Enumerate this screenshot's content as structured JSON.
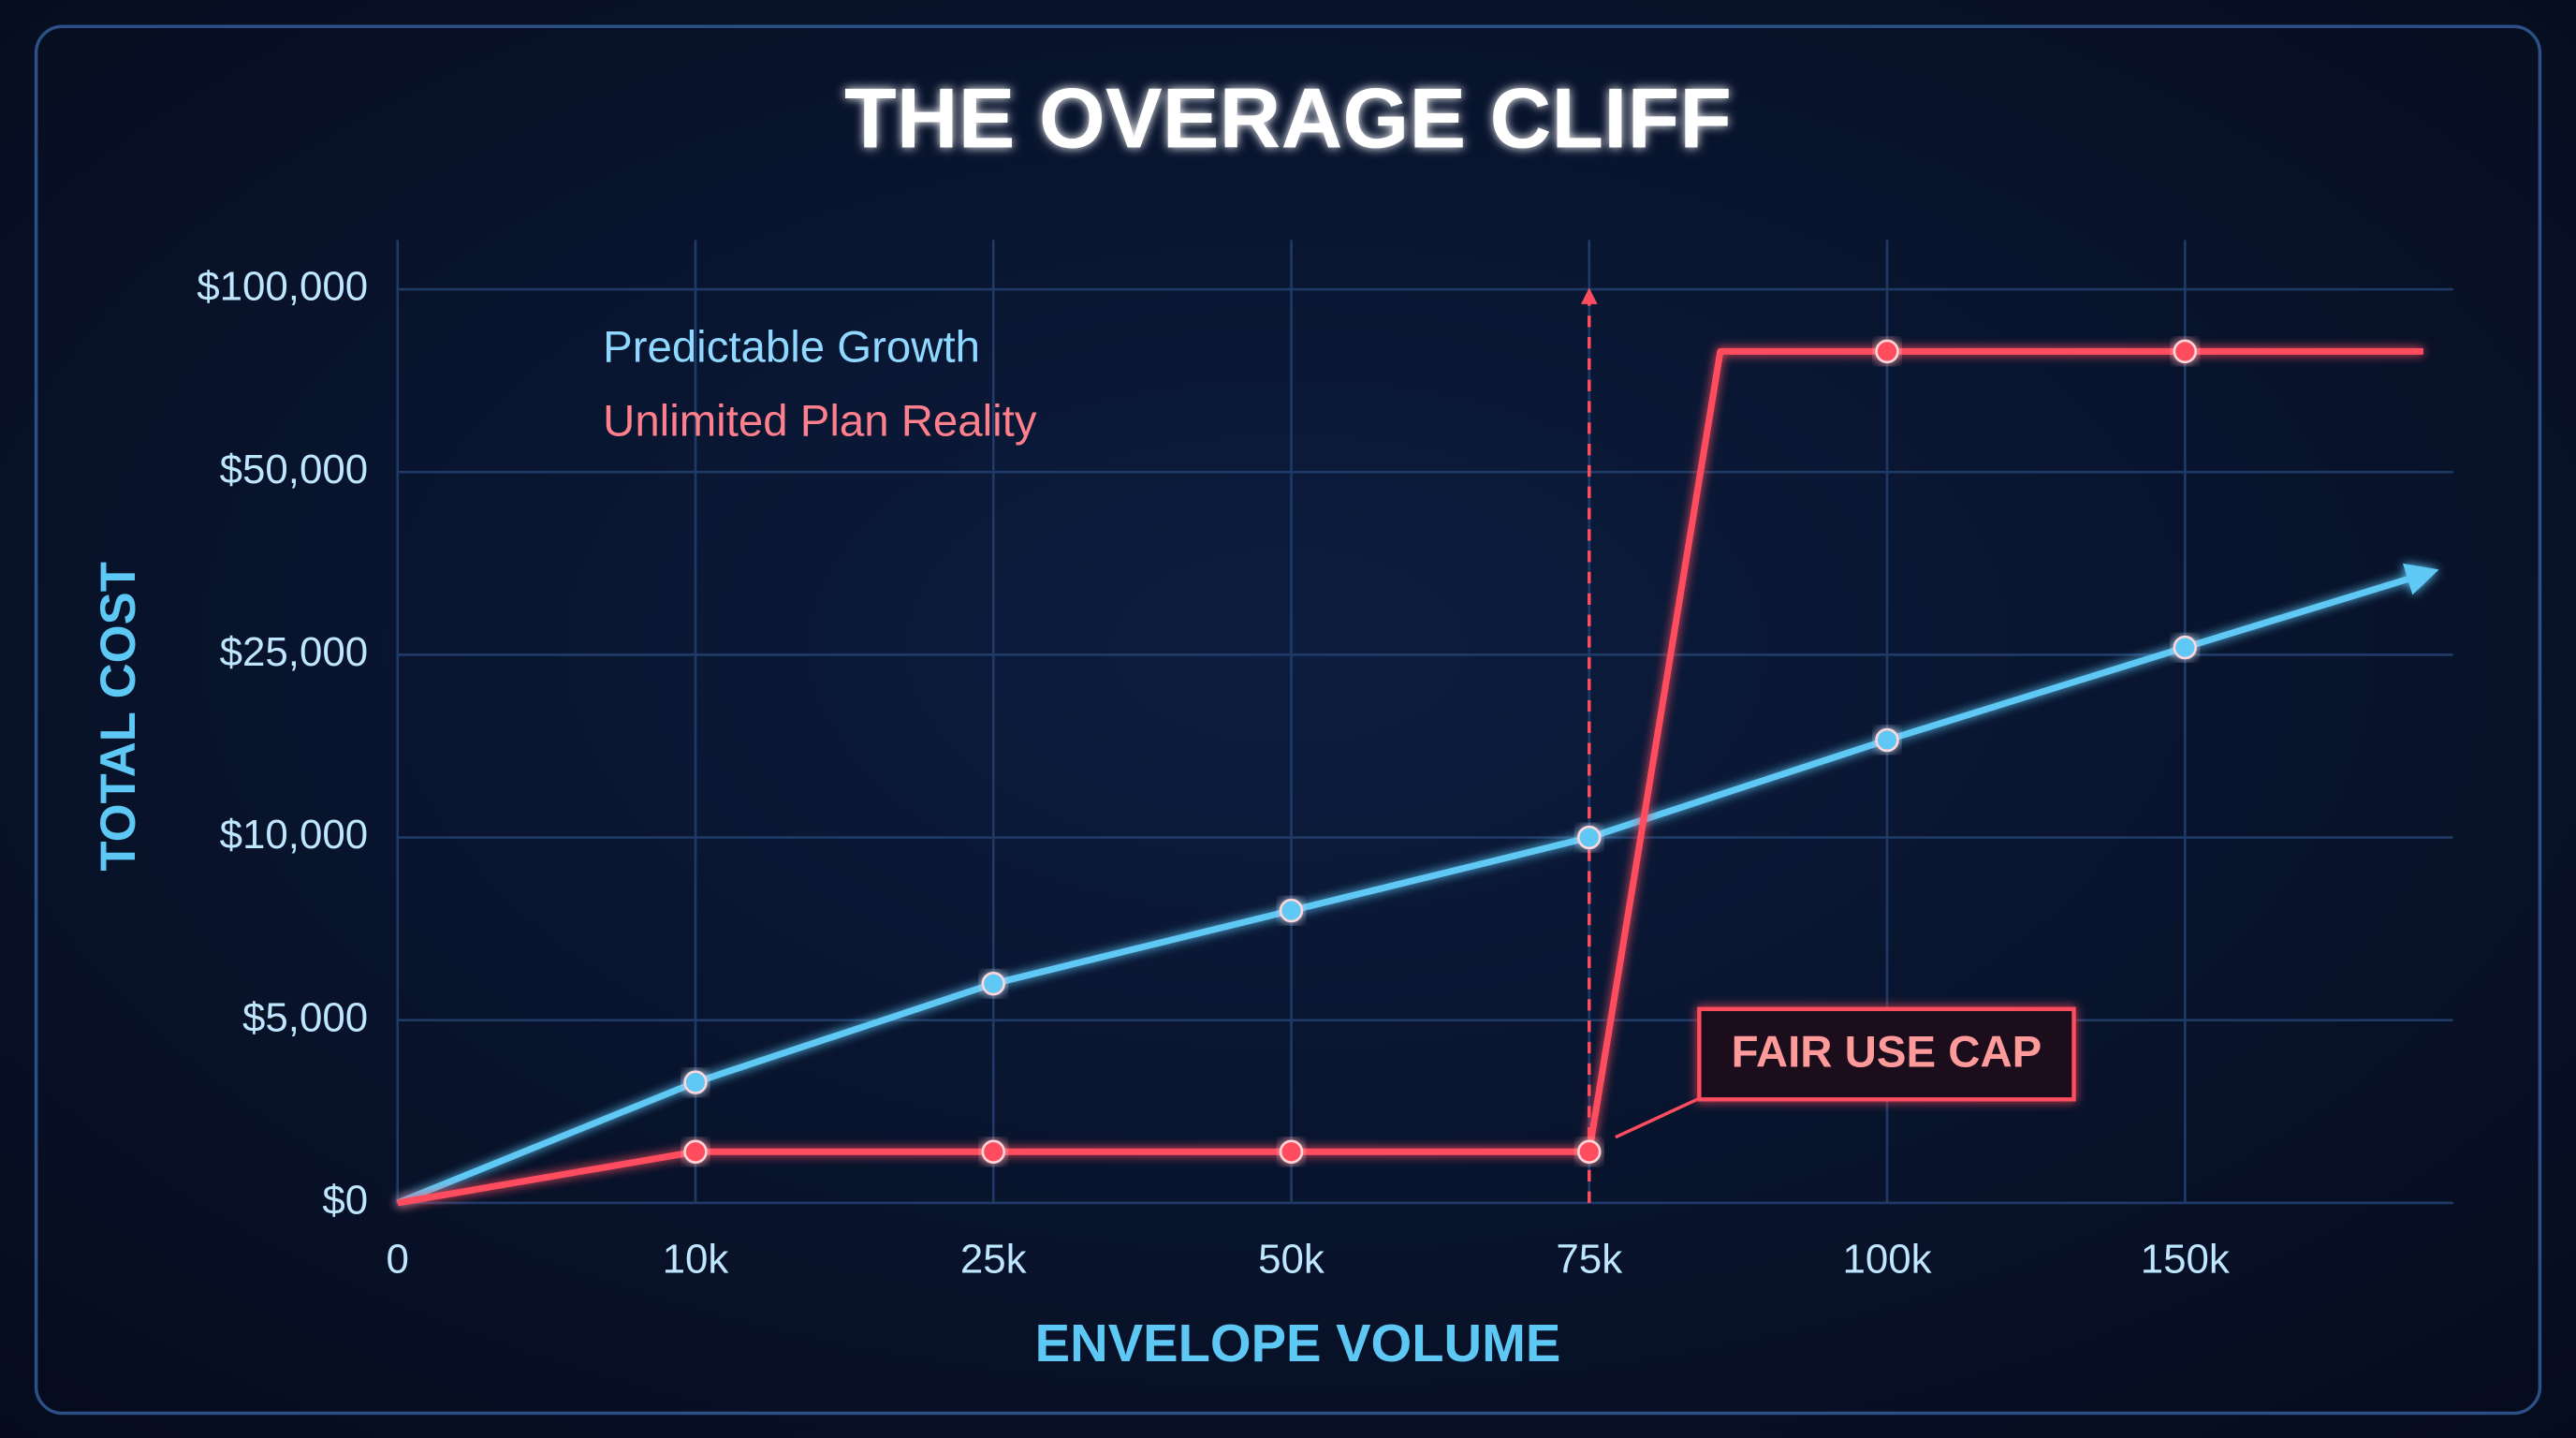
{
  "chart_data": {
    "type": "line",
    "title": "THE OVERAGE CLIFF",
    "x_label": "ENVELOPE VOLUME",
    "y_label": "TOTAL COST",
    "xlim": [
      0,
      195000
    ],
    "ylim": [
      0,
      100000
    ],
    "xticks": [
      0,
      {
        "value": 10000,
        "label": "10k"
      },
      {
        "value": 25000,
        "label": "25k"
      },
      {
        "value": 50000,
        "label": "50k"
      },
      {
        "value": 75000,
        "label": "75k"
      },
      {
        "value": 100000,
        "label": "100k"
      },
      {
        "value": 150000,
        "label": "150k"
      }
    ],
    "yticks": [
      {
        "value": 0,
        "label": "$0"
      },
      {
        "value": 5000,
        "label": "$5,000"
      },
      {
        "value": 10000,
        "label": "$10,000"
      },
      {
        "value": 25000,
        "label": "$25,000"
      },
      {
        "value": 50000,
        "label": "$50,000"
      },
      {
        "value": 100000,
        "label": "$100,000"
      }
    ],
    "grid": true,
    "legend": "top-left",
    "series": [
      {
        "name": "Predictable Growth",
        "color": "#5ec8f5",
        "x": [
          0,
          10000,
          25000,
          50000,
          75000,
          100000,
          150000,
          190000
        ],
        "values": [
          0,
          3300,
          6000,
          8000,
          10000,
          18000,
          26000,
          36000
        ]
      },
      {
        "name": "Unlimited Plan Reality",
        "color": "#ff4d5e",
        "x": [
          0,
          10000,
          25000,
          50000,
          75000,
          86000,
          100000,
          150000,
          190000
        ],
        "values": [
          0,
          1400,
          1400,
          1400,
          1400,
          83000,
          83000,
          83000,
          83000
        ]
      }
    ],
    "annotations": [
      {
        "text": "FAIR USE CAP",
        "x": 75000
      }
    ]
  }
}
